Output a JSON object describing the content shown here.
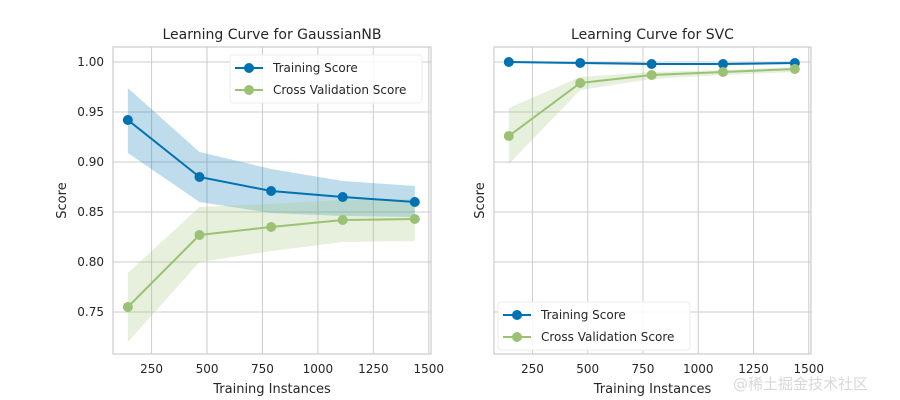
{
  "chart_data": [
    {
      "type": "line",
      "title": "Learning Curve for GaussianNB",
      "xlabel": "Training Instances",
      "ylabel": "Score",
      "xlim": [
        76,
        1510
      ],
      "ylim": [
        0.708,
        1.015
      ],
      "xticks": [
        250,
        500,
        750,
        1000,
        1250,
        1500
      ],
      "yticks": [
        0.75,
        0.8,
        0.85,
        0.9,
        0.95,
        1.0
      ],
      "show_yticklabels": true,
      "grid": true,
      "legend": "top-right",
      "x": [
        143,
        466,
        789,
        1112,
        1437
      ],
      "series": [
        {
          "name": "Training Score",
          "color": "#0072b2",
          "band_color": "#0072b2",
          "values": [
            0.942,
            0.885,
            0.871,
            0.865,
            0.86
          ],
          "upper": [
            0.974,
            0.91,
            0.893,
            0.881,
            0.876
          ],
          "lower": [
            0.909,
            0.86,
            0.849,
            0.846,
            0.845
          ]
        },
        {
          "name": "Cross Validation Score",
          "color": "#9bc274",
          "band_color": "#9bc274",
          "values": [
            0.755,
            0.827,
            0.835,
            0.842,
            0.843
          ],
          "upper": [
            0.789,
            0.855,
            0.858,
            0.862,
            0.863
          ],
          "lower": [
            0.72,
            0.8,
            0.811,
            0.82,
            0.821
          ]
        }
      ]
    },
    {
      "type": "line",
      "title": "Learning Curve for SVC",
      "xlabel": "Training Instances",
      "ylabel": "Score",
      "xlim": [
        76,
        1510
      ],
      "ylim": [
        0.708,
        1.015
      ],
      "xticks": [
        250,
        500,
        750,
        1000,
        1250,
        1500
      ],
      "yticks": [
        0.75,
        0.8,
        0.85,
        0.9,
        0.95,
        1.0
      ],
      "show_yticklabels": false,
      "grid": true,
      "legend": "bottom-left",
      "x": [
        143,
        466,
        789,
        1112,
        1437
      ],
      "series": [
        {
          "name": "Training Score",
          "color": "#0072b2",
          "band_color": "#0072b2",
          "values": [
            1.0,
            0.999,
            0.998,
            0.998,
            0.999
          ],
          "upper": [
            1.001,
            1.0,
            0.999,
            0.999,
            1.0
          ],
          "lower": [
            0.999,
            0.998,
            0.997,
            0.997,
            0.998
          ]
        },
        {
          "name": "Cross Validation Score",
          "color": "#9bc274",
          "band_color": "#9bc274",
          "values": [
            0.926,
            0.979,
            0.987,
            0.99,
            0.993
          ],
          "upper": [
            0.954,
            0.985,
            0.99,
            0.992,
            0.995
          ],
          "lower": [
            0.898,
            0.972,
            0.983,
            0.987,
            0.99
          ]
        }
      ]
    }
  ],
  "watermark": "@稀土掘金技术社区"
}
